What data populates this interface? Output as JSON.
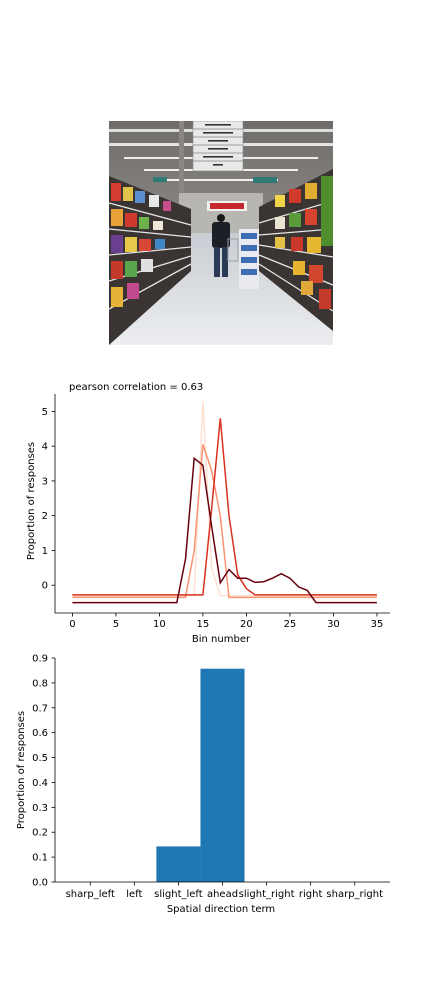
{
  "photo": {
    "subject": "supermarket-aisle"
  },
  "chart_data": [
    {
      "type": "line",
      "annotation": "pearson correlation = 0.63",
      "xlabel": "Bin number",
      "ylabel": "Proportion of responses",
      "xlim": [
        -2,
        36.5
      ],
      "ylim": [
        -0.8,
        5.5
      ],
      "xticks": [
        0,
        5,
        10,
        15,
        20,
        25,
        30,
        35
      ],
      "yticks": [
        0,
        1,
        2,
        3,
        4,
        5
      ],
      "grid": false,
      "legend": false,
      "series": [
        {
          "color": "#fee0d2",
          "x": [
            0,
            1,
            2,
            3,
            4,
            5,
            6,
            7,
            8,
            9,
            10,
            11,
            12,
            13,
            14,
            15,
            16,
            17,
            18,
            19,
            20,
            21,
            22,
            23,
            24,
            25,
            26,
            27,
            28,
            29,
            30,
            31,
            32,
            33,
            34,
            35
          ],
          "y": [
            -0.3,
            -0.3,
            -0.3,
            -0.3,
            -0.3,
            -0.3,
            -0.3,
            -0.3,
            -0.3,
            -0.3,
            -0.3,
            -0.3,
            -0.3,
            -0.3,
            -0.3,
            5.3,
            0.5,
            -0.3,
            -0.3,
            -0.3,
            -0.3,
            -0.3,
            -0.3,
            -0.3,
            -0.3,
            -0.3,
            -0.3,
            -0.3,
            -0.3,
            -0.3,
            -0.3,
            -0.3,
            -0.3,
            -0.3,
            -0.3,
            -0.3
          ]
        },
        {
          "color": "#fc9272",
          "x": [
            0,
            1,
            2,
            3,
            4,
            5,
            6,
            7,
            8,
            9,
            10,
            11,
            12,
            13,
            14,
            15,
            16,
            17,
            18,
            19,
            20,
            21,
            22,
            23,
            24,
            25,
            26,
            27,
            28,
            29,
            30,
            31,
            32,
            33,
            34,
            35
          ],
          "y": [
            -0.35,
            -0.35,
            -0.35,
            -0.35,
            -0.35,
            -0.35,
            -0.35,
            -0.35,
            -0.35,
            -0.35,
            -0.35,
            -0.35,
            -0.35,
            -0.35,
            1.0,
            4.05,
            3.3,
            2.0,
            -0.35,
            -0.35,
            -0.35,
            -0.35,
            -0.35,
            -0.35,
            -0.35,
            -0.35,
            -0.35,
            -0.35,
            -0.35,
            -0.35,
            -0.35,
            -0.35,
            -0.35,
            -0.35,
            -0.35,
            -0.35
          ]
        },
        {
          "color": "#d7301f",
          "x": [
            0,
            1,
            2,
            3,
            4,
            5,
            6,
            7,
            8,
            9,
            10,
            11,
            12,
            13,
            14,
            15,
            16,
            17,
            18,
            19,
            20,
            21,
            22,
            23,
            24,
            25,
            26,
            27,
            28,
            29,
            30,
            31,
            32,
            33,
            34,
            35
          ],
          "y": [
            -0.28,
            -0.28,
            -0.28,
            -0.28,
            -0.28,
            -0.28,
            -0.28,
            -0.28,
            -0.28,
            -0.28,
            -0.28,
            -0.28,
            -0.28,
            -0.28,
            -0.28,
            -0.28,
            2.2,
            4.8,
            2.0,
            0.3,
            -0.1,
            -0.28,
            -0.28,
            -0.28,
            -0.28,
            -0.28,
            -0.28,
            -0.28,
            -0.28,
            -0.28,
            -0.28,
            -0.28,
            -0.28,
            -0.28,
            -0.28,
            -0.28
          ]
        },
        {
          "color": "#67000d",
          "x": [
            0,
            1,
            2,
            3,
            4,
            5,
            6,
            7,
            8,
            9,
            10,
            11,
            12,
            13,
            14,
            15,
            16,
            17,
            18,
            19,
            20,
            21,
            22,
            23,
            24,
            25,
            26,
            27,
            28,
            29,
            30,
            31,
            32,
            33,
            34,
            35
          ],
          "y": [
            -0.5,
            -0.5,
            -0.5,
            -0.5,
            -0.5,
            -0.5,
            -0.5,
            -0.5,
            -0.5,
            -0.5,
            -0.5,
            -0.5,
            -0.5,
            0.75,
            3.65,
            3.45,
            1.7,
            0.07,
            0.45,
            0.2,
            0.2,
            0.08,
            0.1,
            0.2,
            0.33,
            0.2,
            -0.05,
            -0.15,
            -0.5,
            -0.5,
            -0.5,
            -0.5,
            -0.5,
            -0.5,
            -0.5,
            -0.5
          ]
        }
      ]
    },
    {
      "type": "bar",
      "xlabel": "Spatial direction term",
      "ylabel": "Proportion of responses",
      "categories": [
        "sharp_left",
        "left",
        "slight_left",
        "ahead",
        "slight_right",
        "right",
        "sharp_right"
      ],
      "values": [
        0,
        0,
        0.143,
        0.857,
        0,
        0,
        0
      ],
      "ylim": [
        0,
        0.9
      ],
      "yticks": [
        "0.0",
        "0.1",
        "0.2",
        "0.3",
        "0.4",
        "0.5",
        "0.6",
        "0.7",
        "0.8",
        "0.9"
      ],
      "bar_color": "#1f77b4",
      "grid": false,
      "legend": false
    }
  ]
}
